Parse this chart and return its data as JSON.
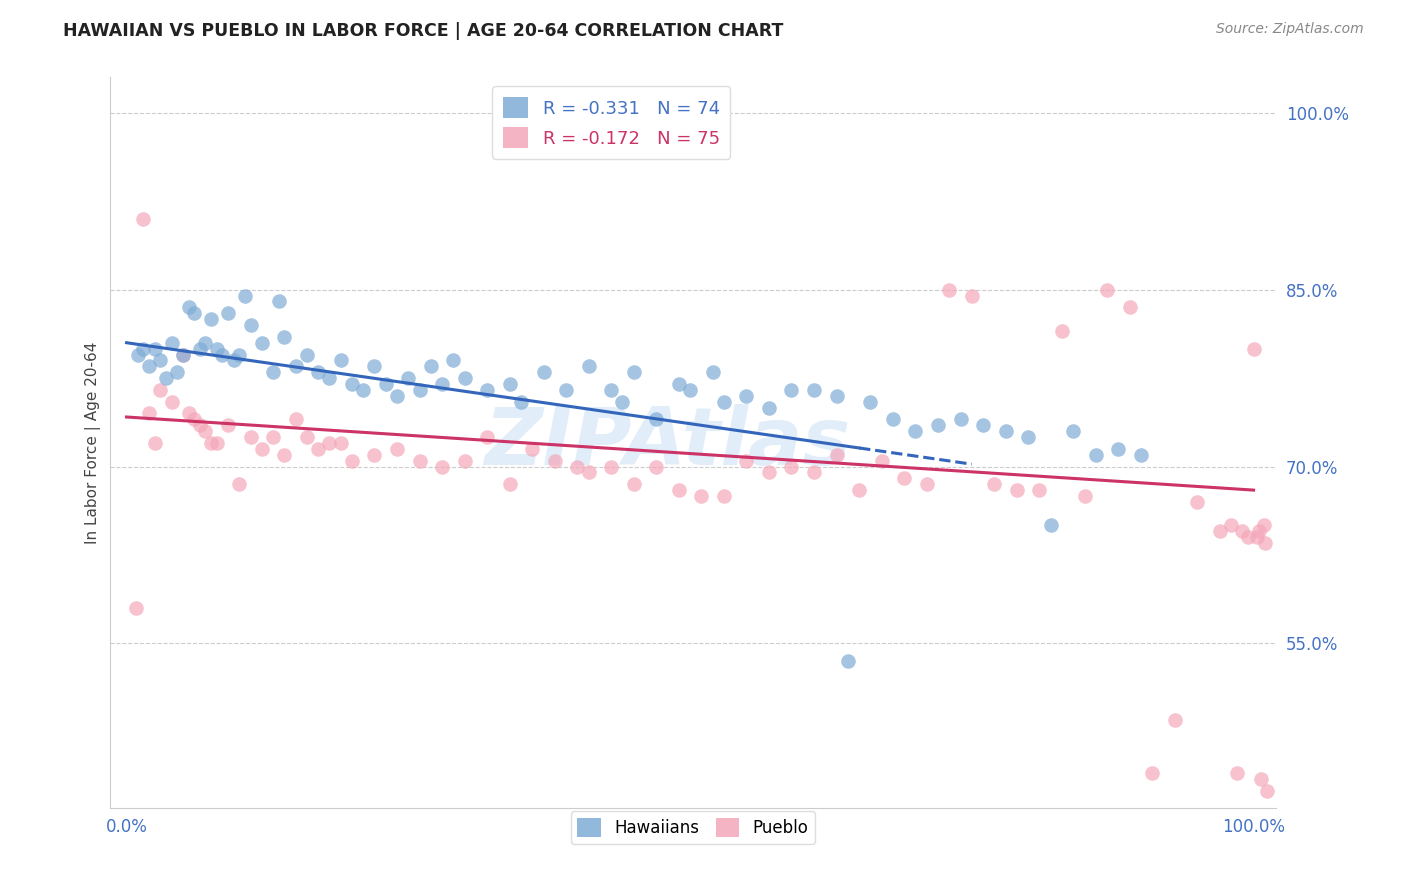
{
  "title": "HAWAIIAN VS PUEBLO IN LABOR FORCE | AGE 20-64 CORRELATION CHART",
  "source_text": "Source: ZipAtlas.com",
  "ylabel": "In Labor Force | Age 20-64",
  "xlim": [
    -1.5,
    102.0
  ],
  "ylim": [
    41.0,
    103.0
  ],
  "ytick_positions": [
    55.0,
    70.0,
    85.0,
    100.0
  ],
  "ytick_labels": [
    "55.0%",
    "70.0%",
    "85.0%",
    "100.0%"
  ],
  "title_color": "#222222",
  "source_color": "#888888",
  "axis_label_color": "#444444",
  "tick_color_right": "#4472c4",
  "grid_color": "#cccccc",
  "background_color": "#ffffff",
  "hawaiians_color": "#7facd6",
  "pueblo_color": "#f4a7b9",
  "hawaiians_alpha": 0.7,
  "pueblo_alpha": 0.7,
  "marker_size": 110,
  "trend_hawaiians_color": "#3366bb",
  "trend_pueblo_color": "#cc3366",
  "trend_lw": 2.2,
  "R_hawaiians": -0.331,
  "N_hawaiians": 74,
  "R_pueblo": -0.172,
  "N_pueblo": 75,
  "legend_label_hawaiians": "Hawaiians",
  "legend_label_pueblo": "Pueblo",
  "watermark_text": "ZIPAtlas",
  "watermark_color": "#aaccee",
  "watermark_alpha": 0.35,
  "watermark_fontsize": 58,
  "hawaiians_trend_x0": 0,
  "hawaiians_trend_y0": 80.5,
  "hawaiians_trend_x1": 75,
  "hawaiians_trend_y1": 70.2,
  "hawaiians_solid_end": 65,
  "pueblo_trend_x0": 0,
  "pueblo_trend_y0": 74.2,
  "pueblo_trend_x1": 100,
  "pueblo_trend_y1": 68.0,
  "hawaiians_x": [
    1.0,
    1.5,
    2.0,
    2.5,
    3.0,
    3.5,
    4.0,
    4.5,
    5.0,
    5.5,
    6.0,
    6.5,
    7.0,
    7.5,
    8.0,
    8.5,
    9.0,
    9.5,
    10.0,
    10.5,
    11.0,
    12.0,
    13.0,
    13.5,
    14.0,
    15.0,
    16.0,
    17.0,
    18.0,
    19.0,
    20.0,
    21.0,
    22.0,
    23.0,
    24.0,
    25.0,
    26.0,
    27.0,
    28.0,
    29.0,
    30.0,
    32.0,
    34.0,
    35.0,
    37.0,
    39.0,
    41.0,
    43.0,
    44.0,
    45.0,
    47.0,
    49.0,
    50.0,
    52.0,
    53.0,
    55.0,
    57.0,
    59.0,
    61.0,
    63.0,
    64.0,
    66.0,
    68.0,
    70.0,
    72.0,
    74.0,
    76.0,
    78.0,
    80.0,
    82.0,
    84.0,
    86.0,
    88.0,
    90.0
  ],
  "hawaiians_y": [
    79.5,
    80.0,
    78.5,
    80.0,
    79.0,
    77.5,
    80.5,
    78.0,
    79.5,
    83.5,
    83.0,
    80.0,
    80.5,
    82.5,
    80.0,
    79.5,
    83.0,
    79.0,
    79.5,
    84.5,
    82.0,
    80.5,
    78.0,
    84.0,
    81.0,
    78.5,
    79.5,
    78.0,
    77.5,
    79.0,
    77.0,
    76.5,
    78.5,
    77.0,
    76.0,
    77.5,
    76.5,
    78.5,
    77.0,
    79.0,
    77.5,
    76.5,
    77.0,
    75.5,
    78.0,
    76.5,
    78.5,
    76.5,
    75.5,
    78.0,
    74.0,
    77.0,
    76.5,
    78.0,
    75.5,
    76.0,
    75.0,
    76.5,
    76.5,
    76.0,
    53.5,
    75.5,
    74.0,
    73.0,
    73.5,
    74.0,
    73.5,
    73.0,
    72.5,
    65.0,
    73.0,
    71.0,
    71.5,
    71.0
  ],
  "pueblo_x": [
    0.8,
    1.5,
    2.0,
    2.5,
    3.0,
    4.0,
    5.0,
    5.5,
    6.0,
    6.5,
    7.0,
    7.5,
    8.0,
    9.0,
    10.0,
    11.0,
    12.0,
    13.0,
    14.0,
    15.0,
    16.0,
    17.0,
    18.0,
    19.0,
    20.0,
    22.0,
    24.0,
    26.0,
    28.0,
    30.0,
    32.0,
    34.0,
    36.0,
    38.0,
    40.0,
    41.0,
    43.0,
    45.0,
    47.0,
    49.0,
    51.0,
    53.0,
    55.0,
    57.0,
    59.0,
    61.0,
    63.0,
    65.0,
    67.0,
    69.0,
    71.0,
    73.0,
    75.0,
    77.0,
    79.0,
    81.0,
    83.0,
    85.0,
    87.0,
    89.0,
    91.0,
    93.0,
    95.0,
    97.0,
    98.0,
    98.5,
    99.0,
    99.5,
    100.0,
    100.3,
    100.5,
    100.7,
    100.9,
    101.0,
    101.2
  ],
  "pueblo_y": [
    58.0,
    91.0,
    74.5,
    72.0,
    76.5,
    75.5,
    79.5,
    74.5,
    74.0,
    73.5,
    73.0,
    72.0,
    72.0,
    73.5,
    68.5,
    72.5,
    71.5,
    72.5,
    71.0,
    74.0,
    72.5,
    71.5,
    72.0,
    72.0,
    70.5,
    71.0,
    71.5,
    70.5,
    70.0,
    70.5,
    72.5,
    68.5,
    71.5,
    70.5,
    70.0,
    69.5,
    70.0,
    68.5,
    70.0,
    68.0,
    67.5,
    67.5,
    70.5,
    69.5,
    70.0,
    69.5,
    71.0,
    68.0,
    70.5,
    69.0,
    68.5,
    85.0,
    84.5,
    68.5,
    68.0,
    68.0,
    81.5,
    67.5,
    85.0,
    83.5,
    44.0,
    48.5,
    67.0,
    64.5,
    65.0,
    44.0,
    64.5,
    64.0,
    80.0,
    64.0,
    64.5,
    43.5,
    65.0,
    63.5,
    42.5
  ]
}
